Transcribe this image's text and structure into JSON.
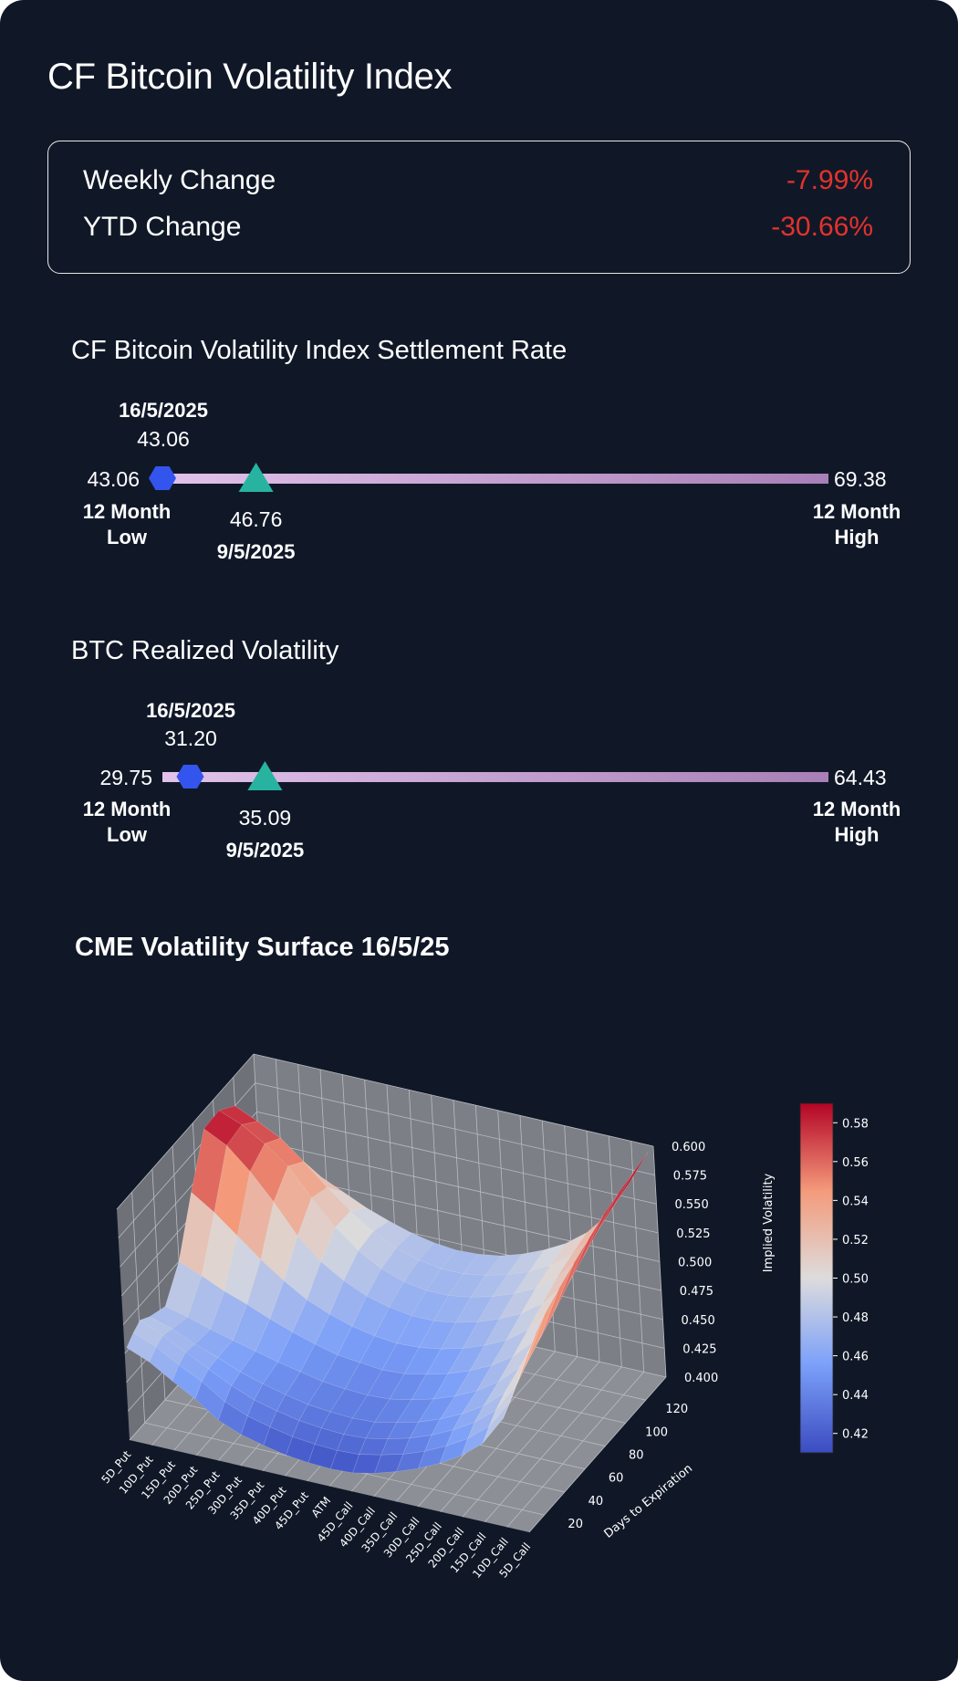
{
  "header": {
    "title": "CF Bitcoin Volatility Index"
  },
  "changes": {
    "weekly_label": "Weekly Change",
    "weekly_value": "-7.99%",
    "ytd_label": "YTD Change",
    "ytd_value": "-30.66%",
    "negative_color": "#e3322c"
  },
  "settlement": {
    "title": "CF Bitcoin Volatility Index Settlement Rate",
    "current_date": "16/5/2025",
    "current_value": "43.06",
    "low_value": "43.06",
    "low_label_1": "12 Month",
    "low_label_2": "Low",
    "high_value": "69.38",
    "high_label_1": "12 Month",
    "high_label_2": "High",
    "week_ago_value": "46.76",
    "week_ago_date": "9/5/2025",
    "range": {
      "low": 43.06,
      "high": 69.38,
      "current": 43.06,
      "week_ago": 46.76
    }
  },
  "realized": {
    "title": "BTC Realized Volatility",
    "current_date": "16/5/2025",
    "current_value": "31.20",
    "low_value": "29.75",
    "low_label_1": "12 Month",
    "low_label_2": "Low",
    "high_value": "64.43",
    "high_label_1": "12 Month",
    "high_label_2": "High",
    "week_ago_value": "35.09",
    "week_ago_date": "9/5/2025",
    "range": {
      "low": 29.75,
      "high": 64.43,
      "current": 31.2,
      "week_ago": 35.09
    }
  },
  "colors": {
    "current_marker": "#3355ee",
    "week_ago_marker": "#27b3a0",
    "bar_start": "#e2c2ea",
    "bar_end": "#a77fb6"
  },
  "chart_data": {
    "type": "surface",
    "title": "CME Volatility Surface 16/5/25",
    "x_categories": [
      "5D_Put",
      "10D_Put",
      "15D_Put",
      "20D_Put",
      "25D_Put",
      "30D_Put",
      "35D_Put",
      "40D_Put",
      "45D_Put",
      "ATM",
      "45D_Call",
      "40D_Call",
      "35D_Call",
      "30D_Call",
      "25D_Call",
      "20D_Call",
      "15D_Call",
      "10D_Call",
      "5D_Call"
    ],
    "y_ticks": [
      "20",
      "40",
      "60",
      "80",
      "100",
      "120"
    ],
    "ylabel": "Days to Expiration",
    "zlabel": "Implied Volatility",
    "z_ticks": [
      "0.400",
      "0.425",
      "0.450",
      "0.475",
      "0.500",
      "0.525",
      "0.550",
      "0.575",
      "0.600"
    ],
    "zlim": [
      0.4,
      0.6
    ],
    "colorbar": {
      "colormap": "coolwarm",
      "ticks": [
        "0.42",
        "0.44",
        "0.46",
        "0.48",
        "0.50",
        "0.52",
        "0.54",
        "0.56",
        "0.58"
      ],
      "range": [
        0.41,
        0.59
      ]
    },
    "expirations": [
      7,
      14,
      21,
      30,
      45,
      60,
      75,
      90,
      105,
      120,
      135
    ],
    "implied_volatility": [
      [
        0.478,
        0.47,
        0.458,
        0.447,
        0.433,
        0.425,
        0.42,
        0.416,
        0.414,
        0.413,
        0.414,
        0.418,
        0.424,
        0.431,
        0.44,
        0.451,
        0.466,
        0.492,
        0.54
      ],
      [
        0.484,
        0.476,
        0.465,
        0.455,
        0.442,
        0.434,
        0.429,
        0.425,
        0.423,
        0.422,
        0.423,
        0.427,
        0.432,
        0.439,
        0.448,
        0.459,
        0.474,
        0.499,
        0.548
      ],
      [
        0.488,
        0.479,
        0.469,
        0.459,
        0.449,
        0.441,
        0.436,
        0.432,
        0.43,
        0.429,
        0.43,
        0.434,
        0.439,
        0.446,
        0.455,
        0.466,
        0.481,
        0.507,
        0.556
      ],
      [
        0.482,
        0.476,
        0.467,
        0.46,
        0.452,
        0.446,
        0.441,
        0.437,
        0.435,
        0.434,
        0.435,
        0.439,
        0.444,
        0.451,
        0.46,
        0.471,
        0.487,
        0.514,
        0.563
      ],
      [
        0.476,
        0.471,
        0.465,
        0.46,
        0.455,
        0.45,
        0.446,
        0.442,
        0.44,
        0.439,
        0.44,
        0.444,
        0.449,
        0.456,
        0.465,
        0.477,
        0.494,
        0.523,
        0.571
      ],
      [
        0.5,
        0.492,
        0.483,
        0.476,
        0.468,
        0.461,
        0.455,
        0.45,
        0.448,
        0.446,
        0.447,
        0.451,
        0.456,
        0.463,
        0.472,
        0.484,
        0.502,
        0.532,
        0.578
      ],
      [
        0.545,
        0.532,
        0.516,
        0.5,
        0.486,
        0.474,
        0.466,
        0.46,
        0.456,
        0.454,
        0.455,
        0.458,
        0.463,
        0.47,
        0.479,
        0.492,
        0.511,
        0.542,
        0.584
      ],
      [
        0.585,
        0.575,
        0.557,
        0.535,
        0.51,
        0.492,
        0.48,
        0.471,
        0.466,
        0.463,
        0.463,
        0.466,
        0.471,
        0.478,
        0.487,
        0.5,
        0.52,
        0.55,
        0.59
      ],
      [
        0.586,
        0.578,
        0.566,
        0.551,
        0.528,
        0.507,
        0.491,
        0.48,
        0.473,
        0.47,
        0.47,
        0.473,
        0.478,
        0.485,
        0.494,
        0.508,
        0.528,
        0.558,
        0.594
      ],
      [
        0.575,
        0.566,
        0.556,
        0.54,
        0.522,
        0.506,
        0.493,
        0.483,
        0.477,
        0.474,
        0.474,
        0.477,
        0.482,
        0.489,
        0.499,
        0.513,
        0.533,
        0.563,
        0.597
      ],
      [
        0.53,
        0.526,
        0.52,
        0.512,
        0.503,
        0.494,
        0.487,
        0.481,
        0.477,
        0.475,
        0.476,
        0.479,
        0.485,
        0.493,
        0.503,
        0.517,
        0.537,
        0.567,
        0.6
      ]
    ]
  }
}
